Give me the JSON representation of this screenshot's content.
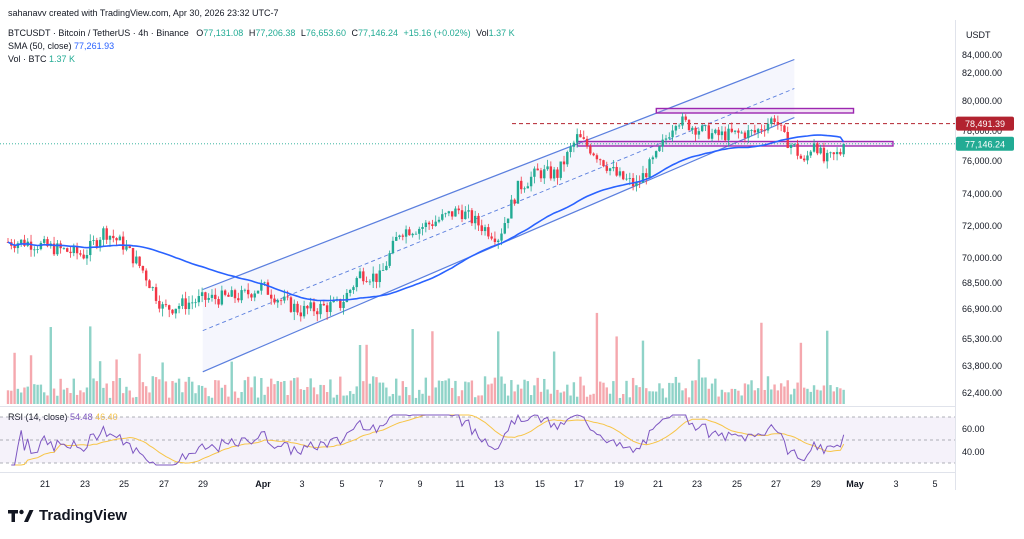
{
  "header": {
    "created_line": "sahanavv created with TradingView.com, Apr 30, 2026 23:32 UTC-7",
    "symbol_line": "BTCUSDT · Bitcoin / TetherUS · 4h · Binance",
    "ohlc": {
      "o_label": "O",
      "o": "77,131.08",
      "h_label": "H",
      "h": "77,206.38",
      "l_label": "L",
      "l": "76,653.60",
      "c_label": "C",
      "c": "77,146.24",
      "change": "+15.16 (+0.02%)",
      "vol_label": "Vol",
      "vol": "1.37 K"
    },
    "sma_label": "SMA (50, close)",
    "sma_value": "77,261.93",
    "vol_indicator_label": "Vol · BTC",
    "vol_indicator_value": "1.37 K",
    "rsi_label": "RSI (14, close)",
    "rsi_value": "54.48",
    "rsi_ma_value": "46.40"
  },
  "axis": {
    "currency": "USDT",
    "price_ticks": [
      "84,000.00",
      "82,000.00",
      "80,000.00",
      "78,000.00",
      "76,000.00",
      "74,000.00",
      "72,000.00",
      "70,000.00",
      "68,500.00",
      "66,900.00",
      "65,300.00",
      "63,800.00",
      "62,400.00"
    ],
    "rsi_ticks": [
      "60.00",
      "40.00"
    ],
    "x_ticks": [
      "21",
      "23",
      "25",
      "27",
      "29",
      "Apr",
      "3",
      "5",
      "7",
      "9",
      "11",
      "13",
      "15",
      "17",
      "19",
      "21",
      "23",
      "25",
      "27",
      "29",
      "May",
      "3",
      "5"
    ],
    "level_labels": {
      "resistance": "78,491.39",
      "last_price": "77,146.24"
    }
  },
  "colors": {
    "up": "#22ab94",
    "down": "#f23645",
    "sma": "#2962ff",
    "channel": "#5b7fde",
    "box": "#9c27b0",
    "rsi": "#7e57c2",
    "rsi_ma": "#f7c548",
    "resistance_tag": "#b2222f",
    "price_tag": "#22ab94"
  },
  "brand": {
    "name": "TradingView",
    "icon": "tradingview-logo-icon"
  },
  "chart_data": {
    "type": "candlestick",
    "symbol": "BTCUSDT",
    "timeframe": "4h",
    "x_range": [
      "Mar 20",
      "May 6"
    ],
    "y_range": [
      61900,
      84100
    ],
    "anchors": [
      {
        "date": "Mar 20",
        "price": 71000
      },
      {
        "date": "Mar 23",
        "price": 70200
      },
      {
        "date": "Mar 24",
        "price": 71700
      },
      {
        "date": "Mar 25",
        "price": 70800
      },
      {
        "date": "Mar 26",
        "price": 69200
      },
      {
        "date": "Mar 27",
        "price": 66900
      },
      {
        "date": "Mar 29",
        "price": 67500
      },
      {
        "date": "Mar 31",
        "price": 67700
      },
      {
        "date": "Apr 1",
        "price": 68300
      },
      {
        "date": "Apr 2",
        "price": 67400
      },
      {
        "date": "Apr 3",
        "price": 66800
      },
      {
        "date": "Apr 5",
        "price": 67200
      },
      {
        "date": "Apr 6",
        "price": 69100
      },
      {
        "date": "Apr 7",
        "price": 68800
      },
      {
        "date": "Apr 8",
        "price": 71700
      },
      {
        "date": "Apr 9",
        "price": 71900
      },
      {
        "date": "Apr 10",
        "price": 72400
      },
      {
        "date": "Apr 11",
        "price": 73000
      },
      {
        "date": "Apr 12",
        "price": 72100
      },
      {
        "date": "Apr 13",
        "price": 71300
      },
      {
        "date": "Apr 14",
        "price": 74400
      },
      {
        "date": "Apr 15",
        "price": 75300
      },
      {
        "date": "Apr 16",
        "price": 75200
      },
      {
        "date": "Apr 17",
        "price": 77600
      },
      {
        "date": "Apr 18",
        "price": 76400
      },
      {
        "date": "Apr 19",
        "price": 75100
      },
      {
        "date": "Apr 20",
        "price": 74500
      },
      {
        "date": "Apr 21",
        "price": 76300
      },
      {
        "date": "Apr 22",
        "price": 78800
      },
      {
        "date": "Apr 23",
        "price": 78200
      },
      {
        "date": "Apr 24",
        "price": 77700
      },
      {
        "date": "Apr 25",
        "price": 77800
      },
      {
        "date": "Apr 26",
        "price": 77900
      },
      {
        "date": "Apr 27",
        "price": 78900
      },
      {
        "date": "Apr 27.5",
        "price": 77500
      },
      {
        "date": "Apr 28",
        "price": 76900
      },
      {
        "date": "Apr 28.5",
        "price": 75800
      },
      {
        "date": "Apr 29",
        "price": 77400
      },
      {
        "date": "Apr 29.5",
        "price": 76000
      },
      {
        "date": "Apr 30",
        "price": 76300
      },
      {
        "date": "May 1",
        "price": 77146
      }
    ],
    "last_close": 77146.24,
    "sma50_last": 77261.93,
    "resistance_level": 78491.39,
    "zones": [
      {
        "name": "upper resistance box",
        "from": "Apr 21",
        "to": "May 1",
        "price_low": 79200,
        "price_high": 79500
      },
      {
        "name": "support/resistance box",
        "from": "Apr 17",
        "to": "May 3",
        "price_low": 77000,
        "price_high": 77300
      }
    ],
    "channel": {
      "upper": [
        {
          "date": "Mar 29",
          "price": 68100
        },
        {
          "date": "Apr 28",
          "price": 83500
        }
      ],
      "lower": [
        {
          "date": "Mar 29",
          "price": 63500
        },
        {
          "date": "Apr 28",
          "price": 78900
        }
      ]
    },
    "rsi": {
      "last": 54.48,
      "ma_last": 46.4,
      "bands": [
        70,
        50,
        30
      ]
    }
  }
}
